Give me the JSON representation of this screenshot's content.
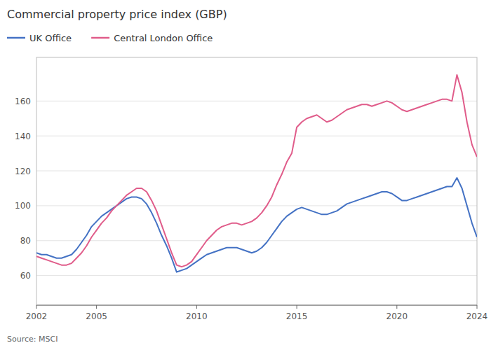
{
  "chart_data": {
    "type": "line",
    "title": "Commercial property price index (GBP)",
    "annotations": [
      "Source: MSCI"
    ],
    "x": [
      2002.0,
      2002.25,
      2002.5,
      2002.75,
      2003.0,
      2003.25,
      2003.5,
      2003.75,
      2004.0,
      2004.25,
      2004.5,
      2004.75,
      2005.0,
      2005.25,
      2005.5,
      2005.75,
      2006.0,
      2006.25,
      2006.5,
      2006.75,
      2007.0,
      2007.25,
      2007.5,
      2007.75,
      2008.0,
      2008.25,
      2008.5,
      2008.75,
      2009.0,
      2009.25,
      2009.5,
      2009.75,
      2010.0,
      2010.25,
      2010.5,
      2010.75,
      2011.0,
      2011.25,
      2011.5,
      2011.75,
      2012.0,
      2012.25,
      2012.5,
      2012.75,
      2013.0,
      2013.25,
      2013.5,
      2013.75,
      2014.0,
      2014.25,
      2014.5,
      2014.75,
      2015.0,
      2015.25,
      2015.5,
      2015.75,
      2016.0,
      2016.25,
      2016.5,
      2016.75,
      2017.0,
      2017.25,
      2017.5,
      2017.75,
      2018.0,
      2018.25,
      2018.5,
      2018.75,
      2019.0,
      2019.25,
      2019.5,
      2019.75,
      2020.0,
      2020.25,
      2020.5,
      2020.75,
      2021.0,
      2021.25,
      2021.5,
      2021.75,
      2022.0,
      2022.25,
      2022.5,
      2022.75,
      2023.0,
      2023.25,
      2023.5,
      2023.75,
      2024.0
    ],
    "series": [
      {
        "name": "UK Office",
        "color": "#4472c4",
        "values": [
          73,
          72,
          72,
          71,
          70,
          70,
          71,
          72,
          75,
          79,
          83,
          88,
          91,
          94,
          96,
          98,
          100,
          102,
          104,
          105,
          105,
          104,
          101,
          96,
          90,
          83,
          77,
          70,
          62,
          63,
          64,
          66,
          68,
          70,
          72,
          73,
          74,
          75,
          76,
          76,
          76,
          75,
          74,
          73,
          74,
          76,
          79,
          83,
          87,
          91,
          94,
          96,
          98,
          99,
          98,
          97,
          96,
          95,
          95,
          96,
          97,
          99,
          101,
          102,
          103,
          104,
          105,
          106,
          107,
          108,
          108,
          107,
          105,
          103,
          103,
          104,
          105,
          106,
          107,
          108,
          109,
          110,
          111,
          111,
          116,
          110,
          100,
          90,
          82
        ]
      },
      {
        "name": "Central London Office",
        "color": "#e05c8a",
        "values": [
          71,
          70,
          69,
          68,
          67,
          66,
          66,
          67,
          70,
          73,
          77,
          82,
          86,
          90,
          93,
          97,
          100,
          103,
          106,
          108,
          110,
          110,
          108,
          103,
          97,
          89,
          81,
          73,
          66,
          65,
          66,
          68,
          72,
          76,
          80,
          83,
          86,
          88,
          89,
          90,
          90,
          89,
          90,
          91,
          93,
          96,
          100,
          105,
          112,
          118,
          125,
          130,
          145,
          148,
          150,
          151,
          152,
          150,
          148,
          149,
          151,
          153,
          155,
          156,
          157,
          158,
          158,
          157,
          158,
          159,
          160,
          159,
          157,
          155,
          154,
          155,
          156,
          157,
          158,
          159,
          160,
          161,
          161,
          160,
          175,
          165,
          148,
          135,
          128
        ]
      }
    ],
    "xlim": [
      2002,
      2024
    ],
    "xticks": [
      2002,
      2005,
      2010,
      2015,
      2020,
      2024
    ],
    "ylim": [
      43,
      185
    ],
    "yticks": [
      60,
      80,
      100,
      120,
      140,
      160
    ],
    "grid": true,
    "legend": "top"
  }
}
